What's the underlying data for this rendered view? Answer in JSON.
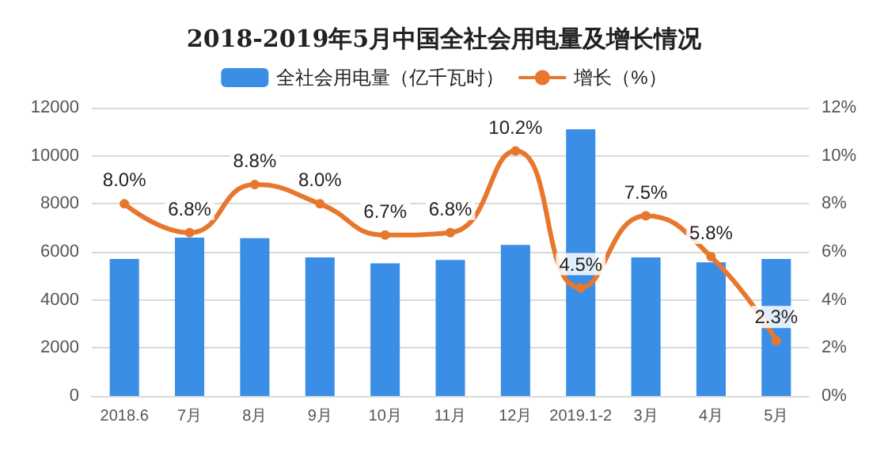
{
  "chart_data": {
    "type": "bar",
    "title": "2018-2019年5月中国全社会用电量及增长情况",
    "categories": [
      "2018.6",
      "7月",
      "8月",
      "9月",
      "10月",
      "11月",
      "12月",
      "2019.1-2",
      "3月",
      "4月",
      "5月"
    ],
    "series": [
      {
        "name": "全社会用电量（亿千瓦时）",
        "color": "#3a8ee6",
        "values": [
          5700,
          6590,
          6570,
          5770,
          5520,
          5660,
          6290,
          11100,
          5770,
          5560,
          5700
        ]
      },
      {
        "name": "增长（%）",
        "type": "line",
        "axis": "y2",
        "color": "#e8772e",
        "marker": "circle",
        "values": [
          8.0,
          6.8,
          8.8,
          8.0,
          6.7,
          6.8,
          10.2,
          4.5,
          7.5,
          5.8,
          2.3
        ],
        "value_labels": [
          "8.0%",
          "6.8%",
          "8.8%",
          "8.0%",
          "6.7%",
          "6.8%",
          "10.2%",
          "4.5%",
          "7.5%",
          "5.8%",
          "2.3%"
        ]
      }
    ],
    "ylim": [
      0,
      12000
    ],
    "yticks": [
      0,
      2000,
      4000,
      6000,
      8000,
      10000,
      12000
    ],
    "y2lim": [
      0,
      12
    ],
    "y2ticks": [
      {
        "value": 0,
        "label": "0%"
      },
      {
        "value": 2,
        "label": "2%"
      },
      {
        "value": 4,
        "label": "4%"
      },
      {
        "value": 6,
        "label": "6%"
      },
      {
        "value": 8,
        "label": "8%"
      },
      {
        "value": 10,
        "label": "10%"
      },
      {
        "value": 12,
        "label": "12%"
      }
    ],
    "grid": "y",
    "legend": "top"
  }
}
